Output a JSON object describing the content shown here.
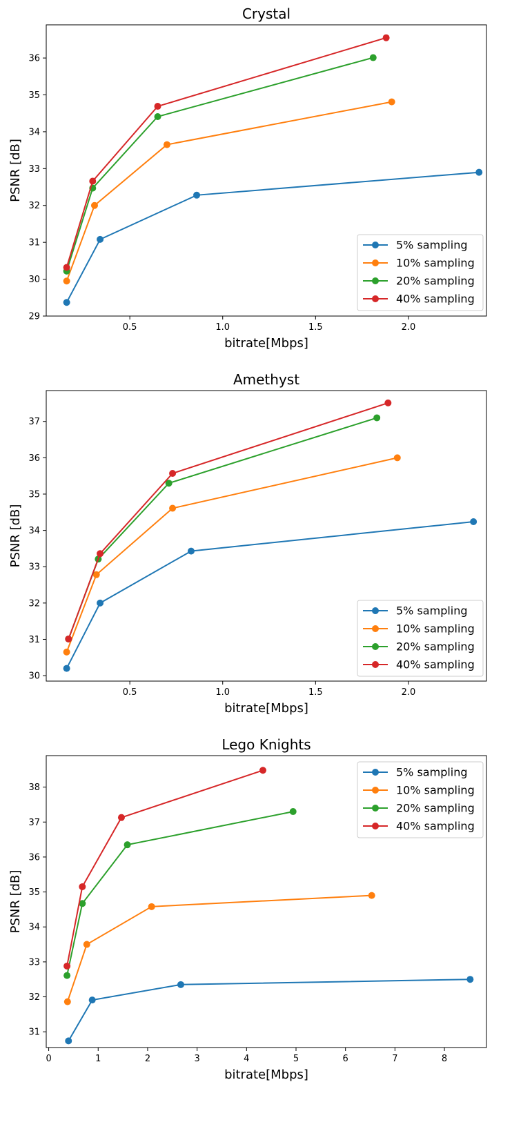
{
  "colors": {
    "5% sampling": "#1f77b4",
    "10% sampling": "#ff7f0e",
    "20% sampling": "#2ca02c",
    "40% sampling": "#d62728"
  },
  "chart_data": [
    {
      "type": "line",
      "title": "Crystal",
      "xlabel": "bitrate[Mbps]",
      "ylabel": "PSNR [dB]",
      "xlim": [
        0.05,
        2.42
      ],
      "ylim": [
        29.0,
        36.9
      ],
      "xticks": [
        0.5,
        1.0,
        1.5,
        2.0
      ],
      "xtick_labels": [
        "0.5",
        "1.0",
        "1.5",
        "2.0"
      ],
      "yticks": [
        29,
        30,
        31,
        32,
        33,
        34,
        35,
        36
      ],
      "ytick_labels": [
        "29",
        "30",
        "31",
        "32",
        "33",
        "34",
        "35",
        "36"
      ],
      "legend": "lower-right",
      "grid": false,
      "series": [
        {
          "name": "5% sampling",
          "x": [
            0.16,
            0.34,
            0.86,
            2.38
          ],
          "y": [
            29.37,
            31.08,
            32.28,
            32.9
          ]
        },
        {
          "name": "10% sampling",
          "x": [
            0.16,
            0.31,
            0.7,
            1.91
          ],
          "y": [
            29.95,
            32.0,
            33.65,
            34.81
          ]
        },
        {
          "name": "20% sampling",
          "x": [
            0.16,
            0.3,
            0.65,
            1.81
          ],
          "y": [
            30.22,
            32.47,
            34.41,
            36.01
          ]
        },
        {
          "name": "40% sampling",
          "x": [
            0.16,
            0.3,
            0.65,
            1.88
          ],
          "y": [
            30.32,
            32.66,
            34.69,
            36.55
          ]
        }
      ]
    },
    {
      "type": "line",
      "title": "Amethyst",
      "xlabel": "bitrate[Mbps]",
      "ylabel": "PSNR [dB]",
      "xlim": [
        0.05,
        2.42
      ],
      "ylim": [
        29.85,
        37.85
      ],
      "xticks": [
        0.5,
        1.0,
        1.5,
        2.0
      ],
      "xtick_labels": [
        "0.5",
        "1.0",
        "1.5",
        "2.0"
      ],
      "yticks": [
        30,
        31,
        32,
        33,
        34,
        35,
        36,
        37
      ],
      "ytick_labels": [
        "30",
        "31",
        "32",
        "33",
        "34",
        "35",
        "36",
        "37"
      ],
      "legend": "lower-right",
      "grid": false,
      "series": [
        {
          "name": "5% sampling",
          "x": [
            0.16,
            0.34,
            0.83,
            2.35
          ],
          "y": [
            30.2,
            32.0,
            33.43,
            34.24
          ]
        },
        {
          "name": "10% sampling",
          "x": [
            0.16,
            0.32,
            0.73,
            1.94
          ],
          "y": [
            30.65,
            32.78,
            34.61,
            36.0
          ]
        },
        {
          "name": "20% sampling",
          "x": [
            0.17,
            0.33,
            0.71,
            1.83
          ],
          "y": [
            31.01,
            33.21,
            35.3,
            37.1
          ]
        },
        {
          "name": "40% sampling",
          "x": [
            0.17,
            0.34,
            0.73,
            1.89
          ],
          "y": [
            31.01,
            33.36,
            35.57,
            37.51
          ]
        }
      ]
    },
    {
      "type": "line",
      "title": "Lego Knights",
      "xlabel": "bitrate[Mbps]",
      "ylabel": "PSNR [dB]",
      "xlim": [
        -0.05,
        8.85
      ],
      "ylim": [
        30.55,
        38.9
      ],
      "xticks": [
        0,
        1,
        2,
        3,
        4,
        5,
        6,
        7,
        8
      ],
      "xtick_labels": [
        "0",
        "1",
        "2",
        "3",
        "4",
        "5",
        "6",
        "7",
        "8"
      ],
      "yticks": [
        31,
        32,
        33,
        34,
        35,
        36,
        37,
        38
      ],
      "ytick_labels": [
        "31",
        "32",
        "33",
        "34",
        "35",
        "36",
        "37",
        "38"
      ],
      "legend": "upper-right",
      "grid": false,
      "series": [
        {
          "name": "5% sampling",
          "x": [
            0.4,
            0.88,
            2.67,
            8.52
          ],
          "y": [
            30.74,
            31.91,
            32.35,
            32.5
          ]
        },
        {
          "name": "10% sampling",
          "x": [
            0.38,
            0.77,
            2.08,
            6.53
          ],
          "y": [
            31.86,
            33.5,
            34.58,
            34.9
          ]
        },
        {
          "name": "20% sampling",
          "x": [
            0.37,
            0.68,
            1.59,
            4.94
          ],
          "y": [
            32.61,
            34.67,
            36.35,
            37.3
          ]
        },
        {
          "name": "40% sampling",
          "x": [
            0.37,
            0.68,
            1.47,
            4.33
          ],
          "y": [
            32.88,
            35.15,
            37.13,
            38.48
          ]
        }
      ]
    }
  ]
}
